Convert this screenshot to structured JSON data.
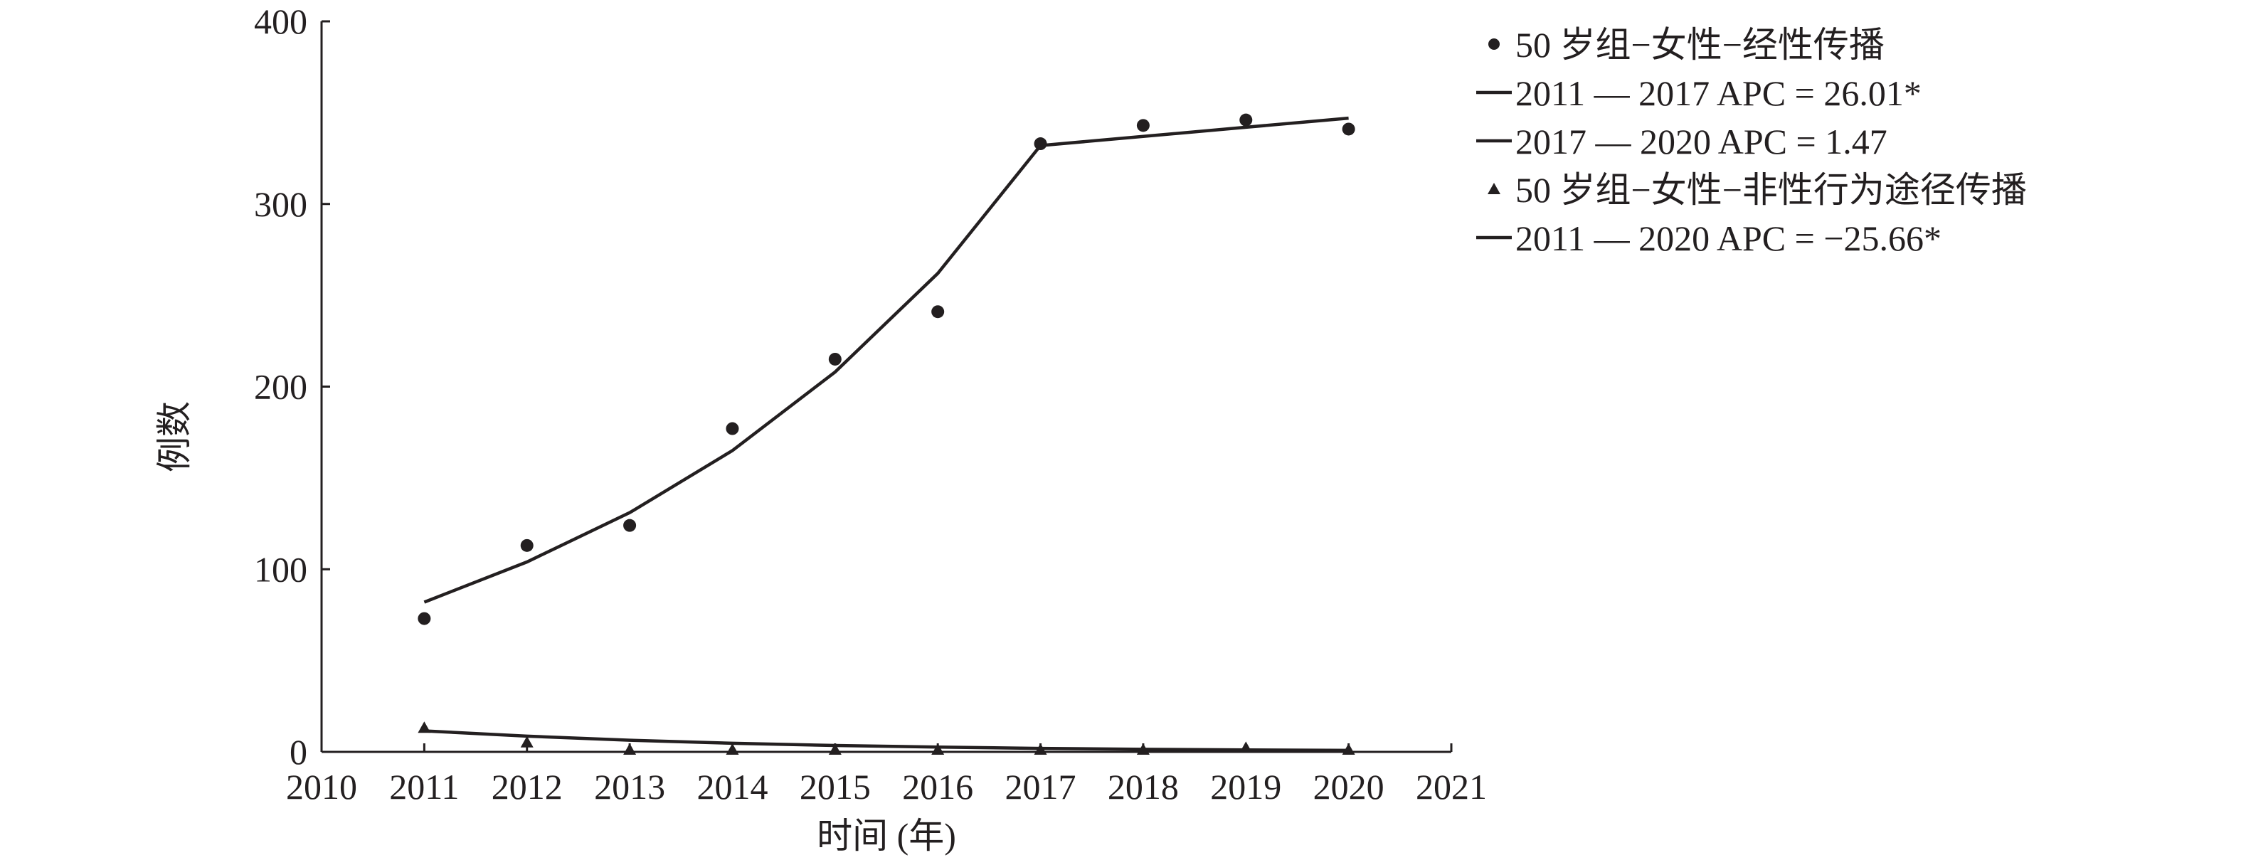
{
  "chart_data": {
    "type": "scatter",
    "title": "",
    "xlabel": "时间 (年)",
    "ylabel": "例数",
    "xlim": [
      2010,
      2021
    ],
    "ylim": [
      0,
      400
    ],
    "x_ticks": [
      "2010",
      "2011",
      "2012",
      "2013",
      "2014",
      "2015",
      "2016",
      "2017",
      "2018",
      "2019",
      "2020",
      "2021"
    ],
    "y_ticks": [
      "0",
      "100",
      "200",
      "300",
      "400"
    ],
    "legend_position": "top-right outside",
    "series": [
      {
        "name": "50 岁组−女性−经性传播",
        "kind": "points",
        "marker": "circle",
        "x": [
          2011,
          2012,
          2013,
          2014,
          2015,
          2016,
          2017,
          2018,
          2019,
          2020
        ],
        "y": [
          73,
          113,
          124,
          177,
          215,
          241,
          333,
          343,
          346,
          341
        ]
      },
      {
        "name": "2011 — 2017 APC = 26.01*",
        "kind": "line",
        "x": [
          2011,
          2012,
          2013,
          2014,
          2015,
          2016,
          2017
        ],
        "y": [
          82,
          104,
          131,
          165,
          208,
          262,
          332
        ]
      },
      {
        "name": "2017 — 2020 APC = 1.47",
        "kind": "line",
        "x": [
          2017,
          2018,
          2019,
          2020
        ],
        "y": [
          332,
          337,
          342,
          347
        ]
      },
      {
        "name": "50 岁组−女性−非性行为途径传播",
        "kind": "points",
        "marker": "triangle",
        "x": [
          2011,
          2012,
          2013,
          2014,
          2015,
          2016,
          2017,
          2018,
          2019,
          2020
        ],
        "y": [
          12,
          4,
          0,
          0,
          0,
          0,
          0,
          0,
          1,
          0
        ]
      },
      {
        "name": "2011 — 2020 APC = −25.66*",
        "kind": "line",
        "x": [
          2011,
          2012,
          2013,
          2014,
          2015,
          2016,
          2017,
          2018,
          2019,
          2020
        ],
        "y": [
          11.5,
          8.6,
          6.4,
          4.7,
          3.5,
          2.6,
          1.9,
          1.4,
          1.1,
          0.8
        ]
      }
    ]
  },
  "colors": {
    "ink": "#231f20",
    "background": "#ffffff"
  }
}
